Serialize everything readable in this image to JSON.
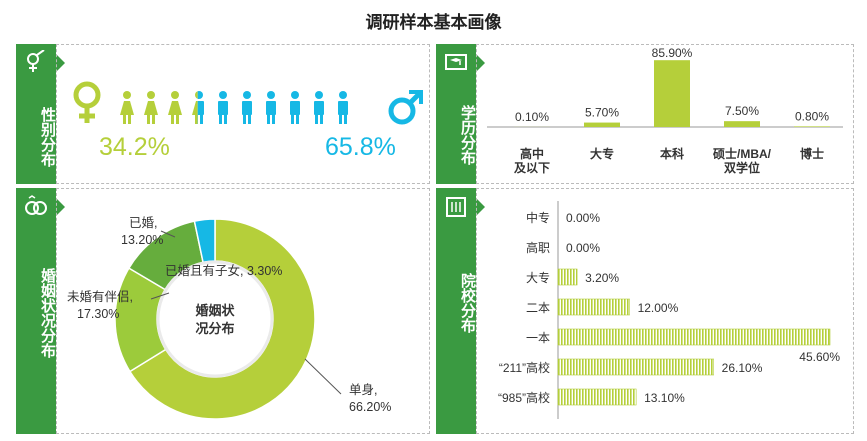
{
  "title": "调研样本基本画像",
  "sections": {
    "gender": "性别分布",
    "education": "学历分布",
    "marital": "婚姻状况分布",
    "school": "院校分布"
  },
  "colors": {
    "green_dark": "#3a9a41",
    "green_light": "#b5cf3a",
    "green_mid": "#7fbf3f",
    "cyan": "#16b8e5",
    "text": "#333333"
  },
  "chart_data": [
    {
      "type": "pictograph",
      "series": [
        {
          "name": "",
          "value": 34.2,
          "label": "34.2%",
          "color": "#b5cf3a",
          "icon": "female-icon"
        },
        {
          "name": "",
          "value": 65.8,
          "label": "65.8%",
          "color": "#16b8e5",
          "icon": "male-icon"
        }
      ]
    },
    {
      "type": "bar",
      "categories": [
        "高中\n及以下",
        "大专",
        "本科",
        "硕士/MBA/\n双学位",
        "博士"
      ],
      "values": [
        0.1,
        5.7,
        85.9,
        7.5,
        0.8
      ],
      "labels": [
        "0.10%",
        "5.70%",
        "85.90%",
        "7.50%",
        "0.80%"
      ],
      "ylim": [
        0,
        90
      ]
    },
    {
      "type": "pie",
      "donut": true,
      "center_text": "婚姻状\n况分布",
      "slices": [
        {
          "name": "单身,",
          "value": 66.2,
          "label": "66.20%",
          "color": "#b5cf3a"
        },
        {
          "name": "未婚有伴侣,",
          "value": 17.3,
          "label": "17.30%",
          "color": "#9ccb3b"
        },
        {
          "name": "已婚,",
          "value": 13.2,
          "label": "13.20%",
          "color": "#66ad3d"
        },
        {
          "name": "已婚且有子女,",
          "value": 3.3,
          "label": "3.30%",
          "color": "#16b8e5"
        }
      ]
    },
    {
      "type": "bar",
      "orientation": "horizontal",
      "categories": [
        "中专",
        "高职",
        "大专",
        "二本",
        "一本",
        "“211”高校",
        "“985”高校"
      ],
      "values": [
        0.0,
        0.0,
        3.2,
        12.0,
        45.6,
        26.1,
        13.1
      ],
      "labels": [
        "0.00%",
        "0.00%",
        "3.20%",
        "12.00%",
        "45.60%",
        "26.10%",
        "13.10%"
      ],
      "xlim": [
        0,
        45.6
      ]
    }
  ]
}
